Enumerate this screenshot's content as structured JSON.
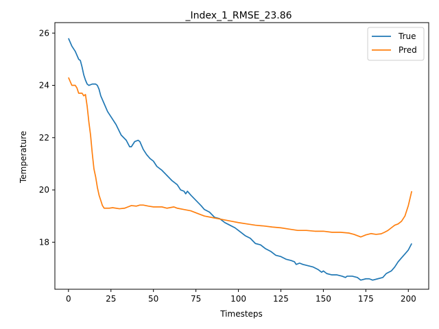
{
  "chart_data": {
    "type": "line",
    "title": "_Index_1_RMSE_23.86",
    "xlabel": "Timesteps",
    "ylabel": "Temperature",
    "xlim": [
      -8,
      212
    ],
    "ylim": [
      16.2,
      26.4
    ],
    "xticks": [
      0,
      25,
      50,
      75,
      100,
      125,
      150,
      175,
      200
    ],
    "yticks": [
      18,
      20,
      22,
      24,
      26
    ],
    "grid": false,
    "legend_position": "top-right",
    "series": [
      {
        "name": "True",
        "color": "#1f77b4",
        "points": [
          [
            0,
            25.8
          ],
          [
            2,
            25.5
          ],
          [
            4,
            25.3
          ],
          [
            6,
            25.0
          ],
          [
            7,
            24.95
          ],
          [
            8,
            24.7
          ],
          [
            9,
            24.4
          ],
          [
            10,
            24.2
          ],
          [
            11,
            24.05
          ],
          [
            12,
            24.0
          ],
          [
            14,
            24.05
          ],
          [
            16,
            24.05
          ],
          [
            17,
            24.0
          ],
          [
            18,
            23.85
          ],
          [
            19,
            23.6
          ],
          [
            21,
            23.3
          ],
          [
            23,
            23.0
          ],
          [
            25,
            22.8
          ],
          [
            28,
            22.5
          ],
          [
            31,
            22.1
          ],
          [
            34,
            21.9
          ],
          [
            36,
            21.65
          ],
          [
            37,
            21.65
          ],
          [
            39,
            21.85
          ],
          [
            41,
            21.9
          ],
          [
            42,
            21.85
          ],
          [
            44,
            21.55
          ],
          [
            46,
            21.35
          ],
          [
            48,
            21.2
          ],
          [
            50,
            21.1
          ],
          [
            52,
            20.9
          ],
          [
            55,
            20.75
          ],
          [
            58,
            20.55
          ],
          [
            61,
            20.35
          ],
          [
            64,
            20.2
          ],
          [
            66,
            20.0
          ],
          [
            68,
            19.95
          ],
          [
            69,
            19.85
          ],
          [
            70,
            19.95
          ],
          [
            72,
            19.8
          ],
          [
            75,
            19.6
          ],
          [
            78,
            19.4
          ],
          [
            80,
            19.25
          ],
          [
            83,
            19.15
          ],
          [
            86,
            18.95
          ],
          [
            89,
            18.9
          ],
          [
            92,
            18.75
          ],
          [
            95,
            18.65
          ],
          [
            98,
            18.55
          ],
          [
            101,
            18.4
          ],
          [
            104,
            18.25
          ],
          [
            107,
            18.15
          ],
          [
            110,
            17.95
          ],
          [
            113,
            17.9
          ],
          [
            116,
            17.75
          ],
          [
            119,
            17.65
          ],
          [
            122,
            17.5
          ],
          [
            125,
            17.45
          ],
          [
            128,
            17.35
          ],
          [
            131,
            17.3
          ],
          [
            133,
            17.25
          ],
          [
            134,
            17.15
          ],
          [
            136,
            17.2
          ],
          [
            138,
            17.15
          ],
          [
            141,
            17.1
          ],
          [
            144,
            17.05
          ],
          [
            147,
            16.95
          ],
          [
            149,
            16.85
          ],
          [
            150,
            16.9
          ],
          [
            152,
            16.8
          ],
          [
            155,
            16.75
          ],
          [
            158,
            16.75
          ],
          [
            161,
            16.7
          ],
          [
            163,
            16.65
          ],
          [
            164,
            16.7
          ],
          [
            167,
            16.7
          ],
          [
            170,
            16.65
          ],
          [
            172,
            16.55
          ],
          [
            175,
            16.6
          ],
          [
            177,
            16.6
          ],
          [
            179,
            16.55
          ],
          [
            182,
            16.6
          ],
          [
            185,
            16.65
          ],
          [
            187,
            16.8
          ],
          [
            190,
            16.9
          ],
          [
            192,
            17.05
          ],
          [
            194,
            17.25
          ],
          [
            196,
            17.4
          ],
          [
            198,
            17.55
          ],
          [
            200,
            17.7
          ],
          [
            202,
            17.95
          ]
        ]
      },
      {
        "name": "Pred",
        "color": "#ff7f0e",
        "points": [
          [
            0,
            24.3
          ],
          [
            1,
            24.15
          ],
          [
            2,
            24.0
          ],
          [
            4,
            24.0
          ],
          [
            5,
            23.9
          ],
          [
            6,
            23.7
          ],
          [
            8,
            23.7
          ],
          [
            9,
            23.6
          ],
          [
            10,
            23.65
          ],
          [
            11,
            23.2
          ],
          [
            12,
            22.6
          ],
          [
            13,
            22.1
          ],
          [
            14,
            21.4
          ],
          [
            15,
            20.8
          ],
          [
            16,
            20.5
          ],
          [
            17,
            20.1
          ],
          [
            18,
            19.8
          ],
          [
            19,
            19.6
          ],
          [
            20,
            19.4
          ],
          [
            21,
            19.3
          ],
          [
            24,
            19.3
          ],
          [
            26,
            19.32
          ],
          [
            30,
            19.28
          ],
          [
            33,
            19.3
          ],
          [
            35,
            19.35
          ],
          [
            37,
            19.4
          ],
          [
            40,
            19.38
          ],
          [
            42,
            19.42
          ],
          [
            44,
            19.42
          ],
          [
            47,
            19.38
          ],
          [
            50,
            19.35
          ],
          [
            55,
            19.35
          ],
          [
            58,
            19.3
          ],
          [
            62,
            19.35
          ],
          [
            64,
            19.3
          ],
          [
            68,
            19.25
          ],
          [
            72,
            19.2
          ],
          [
            76,
            19.1
          ],
          [
            80,
            19.0
          ],
          [
            84,
            18.95
          ],
          [
            88,
            18.9
          ],
          [
            92,
            18.85
          ],
          [
            96,
            18.8
          ],
          [
            100,
            18.75
          ],
          [
            105,
            18.7
          ],
          [
            110,
            18.65
          ],
          [
            115,
            18.62
          ],
          [
            120,
            18.58
          ],
          [
            125,
            18.55
          ],
          [
            130,
            18.5
          ],
          [
            135,
            18.45
          ],
          [
            140,
            18.45
          ],
          [
            145,
            18.42
          ],
          [
            150,
            18.42
          ],
          [
            155,
            18.38
          ],
          [
            160,
            18.38
          ],
          [
            165,
            18.35
          ],
          [
            168,
            18.3
          ],
          [
            170,
            18.25
          ],
          [
            172,
            18.2
          ],
          [
            175,
            18.28
          ],
          [
            178,
            18.33
          ],
          [
            181,
            18.3
          ],
          [
            184,
            18.32
          ],
          [
            186,
            18.38
          ],
          [
            188,
            18.45
          ],
          [
            190,
            18.55
          ],
          [
            192,
            18.65
          ],
          [
            194,
            18.7
          ],
          [
            196,
            18.8
          ],
          [
            198,
            19.0
          ],
          [
            200,
            19.4
          ],
          [
            202,
            19.95
          ]
        ]
      }
    ]
  }
}
